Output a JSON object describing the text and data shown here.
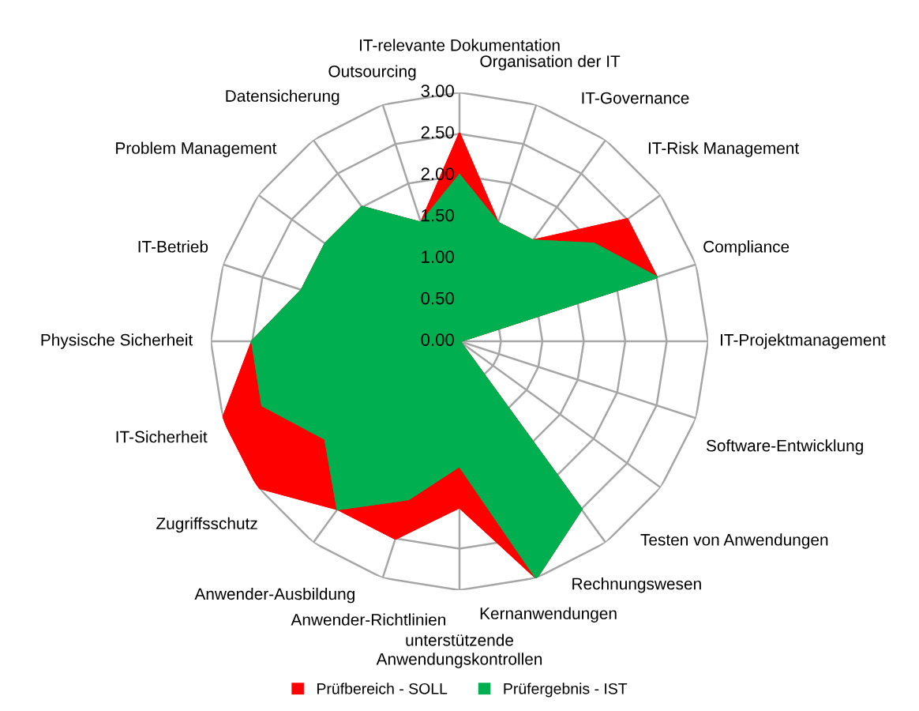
{
  "chart_data": {
    "type": "radar",
    "categories": [
      "IT-relevante Dokumentation",
      "Organisation der IT",
      "IT-Governance",
      "IT-Risk Management",
      "Compliance",
      "IT-Projektmanagement",
      "Software-Entwicklung",
      "Testen von Anwendungen",
      "Rechnungswesen",
      "Kernanwendungen",
      "unterstützende\nAnwendungskontrollen",
      "Anwender-Richtlinien",
      "Anwender-Ausbildung",
      "Zugriffsschutz",
      "IT-Sicherheit",
      "Physische Sicherheit",
      "IT-Betrieb",
      "Problem Management",
      "Datensicherung",
      "Outsourcing"
    ],
    "series": [
      {
        "name": "Prüfbereich - SOLL",
        "color": "#ff0000",
        "values": [
          2.5,
          1.5,
          1.5,
          2.5,
          2.5,
          0,
          0,
          0,
          2.5,
          3.0,
          2.0,
          2.5,
          2.5,
          3.0,
          3.0,
          2.5,
          2.0,
          2.0,
          2.0,
          1.5
        ]
      },
      {
        "name": "Prüfergebnis - IST",
        "color": "#00b050",
        "values": [
          2.0,
          1.5,
          1.5,
          2.0,
          2.5,
          0,
          0,
          0,
          2.5,
          3.0,
          1.5,
          2.0,
          2.5,
          2.0,
          2.5,
          2.5,
          2.0,
          2.0,
          2.0,
          1.5
        ]
      }
    ],
    "ylim": [
      0,
      3
    ],
    "yticks": [
      {
        "value": 0,
        "label": "0.00"
      },
      {
        "value": 0.5,
        "label": "0.50"
      },
      {
        "value": 1,
        "label": "1.00"
      },
      {
        "value": 1.5,
        "label": "1.50"
      },
      {
        "value": 2,
        "label": "2.00"
      },
      {
        "value": 2.5,
        "label": "2.50"
      },
      {
        "value": 3,
        "label": "3.00"
      }
    ],
    "grid": true,
    "legend": "bottom"
  }
}
